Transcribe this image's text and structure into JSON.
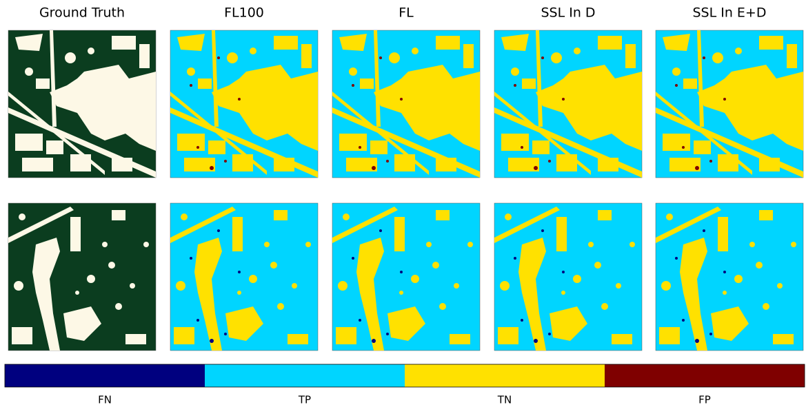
{
  "columns": [
    "Ground Truth",
    "FL100",
    "FL",
    "SSL In D",
    "SSL In E+D"
  ],
  "legend": [
    {
      "label": "FN",
      "color": "#00007f"
    },
    {
      "label": "TP",
      "color": "#00d5ff"
    },
    {
      "label": "TN",
      "color": "#ffe100"
    },
    {
      "label": "FP",
      "color": "#7f0000"
    }
  ]
}
